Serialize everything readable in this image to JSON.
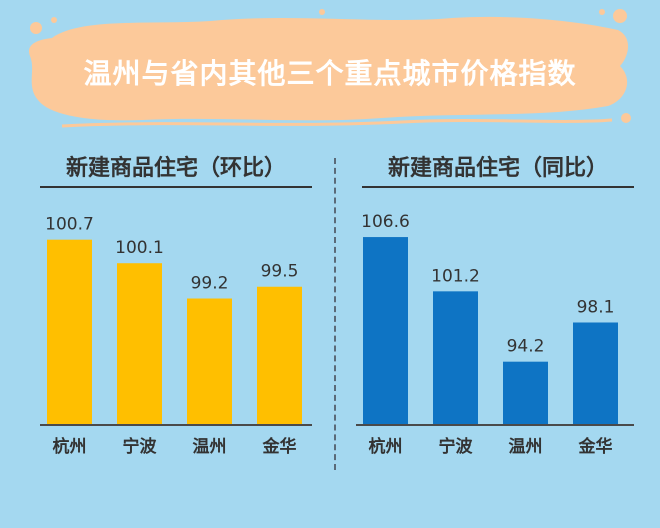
{
  "title": "温州与省内其他三个重点城市价格指数",
  "colors": {
    "background": "#a4d8f0",
    "banner": "#fcc99a",
    "left_bars": "#ffbf00",
    "right_bars": "#0e74c4"
  },
  "chart_data": [
    {
      "type": "bar",
      "title": "新建商品住宅（环比）",
      "categories": [
        "杭州",
        "宁波",
        "温州",
        "金华"
      ],
      "values": [
        100.7,
        100.1,
        99.2,
        99.5
      ],
      "value_labels": [
        "100.7",
        "100.1",
        "99.2",
        "99.5"
      ],
      "color": "#ffbf00",
      "ylim": [
        96.0,
        101.1
      ],
      "grid": false
    },
    {
      "type": "bar",
      "title": "新建商品住宅（同比）",
      "categories": [
        "杭州",
        "宁波",
        "温州",
        "金华"
      ],
      "values": [
        106.6,
        101.2,
        94.2,
        98.1
      ],
      "value_labels": [
        "106.6",
        "101.2",
        "94.2",
        "98.1"
      ],
      "color": "#0e74c4",
      "ylim": [
        88.0,
        107.9
      ],
      "grid": false
    }
  ]
}
